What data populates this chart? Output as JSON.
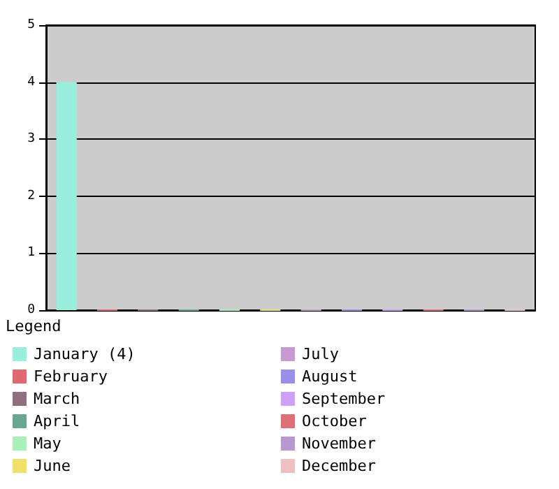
{
  "chart_data": {
    "type": "bar",
    "legend_title": "Legend",
    "categories": [
      null,
      null,
      null,
      null,
      null,
      null,
      null,
      null,
      null,
      null,
      null,
      null
    ],
    "series": [
      {
        "name": "January (4)",
        "color": "#99eedd",
        "values": [
          4,
          null,
          null,
          null,
          null,
          null,
          null,
          null,
          null,
          null,
          null,
          null
        ]
      },
      {
        "name": "February",
        "color": "#e06870",
        "values": [
          null,
          0,
          null,
          null,
          null,
          null,
          null,
          null,
          null,
          null,
          null,
          null
        ]
      },
      {
        "name": "March",
        "color": "#907080",
        "values": [
          null,
          null,
          0,
          null,
          null,
          null,
          null,
          null,
          null,
          null,
          null,
          null
        ]
      },
      {
        "name": "April",
        "color": "#68a890",
        "values": [
          null,
          null,
          null,
          0,
          null,
          null,
          null,
          null,
          null,
          null,
          null,
          null
        ]
      },
      {
        "name": "May",
        "color": "#a8f0b8",
        "values": [
          null,
          null,
          null,
          null,
          0,
          null,
          null,
          null,
          null,
          null,
          null,
          null
        ]
      },
      {
        "name": "June",
        "color": "#f0e068",
        "values": [
          null,
          null,
          null,
          null,
          null,
          0,
          null,
          null,
          null,
          null,
          null,
          null
        ]
      },
      {
        "name": "July",
        "color": "#c898d0",
        "values": [
          null,
          null,
          null,
          null,
          null,
          null,
          0,
          null,
          null,
          null,
          null,
          null
        ]
      },
      {
        "name": "August",
        "color": "#9890e8",
        "values": [
          null,
          null,
          null,
          null,
          null,
          null,
          null,
          0,
          null,
          null,
          null,
          null
        ]
      },
      {
        "name": "September",
        "color": "#d0a0f8",
        "values": [
          null,
          null,
          null,
          null,
          null,
          null,
          null,
          null,
          0,
          null,
          null,
          null
        ]
      },
      {
        "name": "October",
        "color": "#e07078",
        "values": [
          null,
          null,
          null,
          null,
          null,
          null,
          null,
          null,
          null,
          0,
          null,
          null
        ]
      },
      {
        "name": "November",
        "color": "#b898d0",
        "values": [
          null,
          null,
          null,
          null,
          null,
          null,
          null,
          null,
          null,
          null,
          0,
          null
        ]
      },
      {
        "name": "December",
        "color": "#f0c0c0",
        "values": [
          null,
          null,
          null,
          null,
          null,
          null,
          null,
          null,
          null,
          null,
          null,
          0
        ]
      }
    ],
    "ylim": [
      0,
      5
    ],
    "yticks": [
      0,
      1,
      2,
      3,
      4,
      5
    ],
    "grid": "y",
    "legend": "bottom"
  }
}
